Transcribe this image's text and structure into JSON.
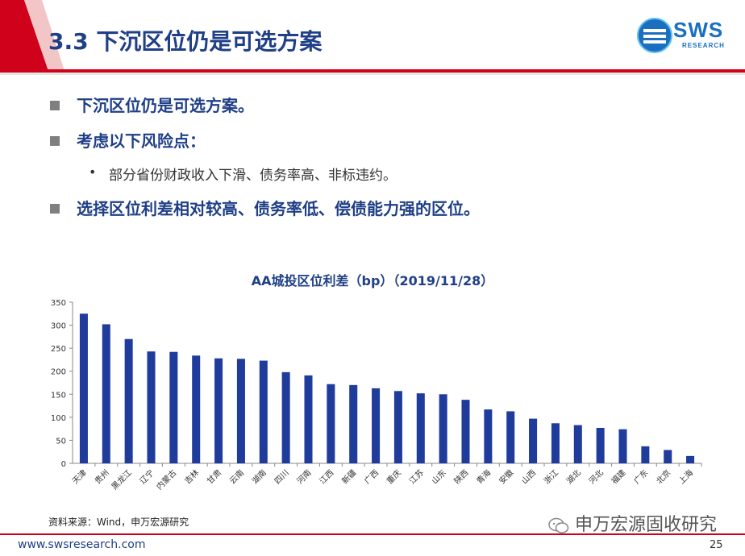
{
  "header": {
    "title": "3.3 下沉区位仍是可选方案",
    "logo_text": "SWS",
    "logo_subtext": "RESEARCH",
    "accent_color": "#d0021b",
    "title_color": "#1f3f86"
  },
  "bullets": [
    {
      "text": "下沉区位仍是可选方案。"
    },
    {
      "text": "考虑以下风险点："
    }
  ],
  "sub_bullets": [
    {
      "marker": "•",
      "text": "部分省份财政收入下滑、债务率高、非标违约。"
    }
  ],
  "bullets_after": [
    {
      "text": "选择区位利差相对较高、债务率低、偿债能力强的区位。"
    }
  ],
  "chart_data": {
    "type": "bar",
    "title": "AA城投区位利差（bp）（2019/11/28）",
    "categories": [
      "天津",
      "贵州",
      "黑龙江",
      "辽宁",
      "内蒙古",
      "吉林",
      "甘肃",
      "云南",
      "湖南",
      "四川",
      "河南",
      "江西",
      "新疆",
      "广西",
      "重庆",
      "江苏",
      "山东",
      "陕西",
      "青海",
      "安徽",
      "山西",
      "浙江",
      "湖北",
      "河北",
      "福建",
      "广东",
      "北京",
      "上海"
    ],
    "values": [
      325,
      302,
      270,
      243,
      242,
      234,
      228,
      227,
      223,
      198,
      191,
      172,
      170,
      163,
      157,
      152,
      150,
      138,
      117,
      113,
      97,
      87,
      83,
      77,
      74,
      37,
      29,
      16
    ],
    "ylim": [
      0,
      350
    ],
    "yticks": [
      0,
      50,
      100,
      150,
      200,
      250,
      300,
      350
    ],
    "bar_color": "#1f3b9c",
    "grid": false,
    "legend": "none"
  },
  "source": "资料来源：Wind，申万宏源研究",
  "watermark": "申万宏源固收研究",
  "footer": {
    "url": "www.swsresearch.com",
    "page": "25"
  }
}
